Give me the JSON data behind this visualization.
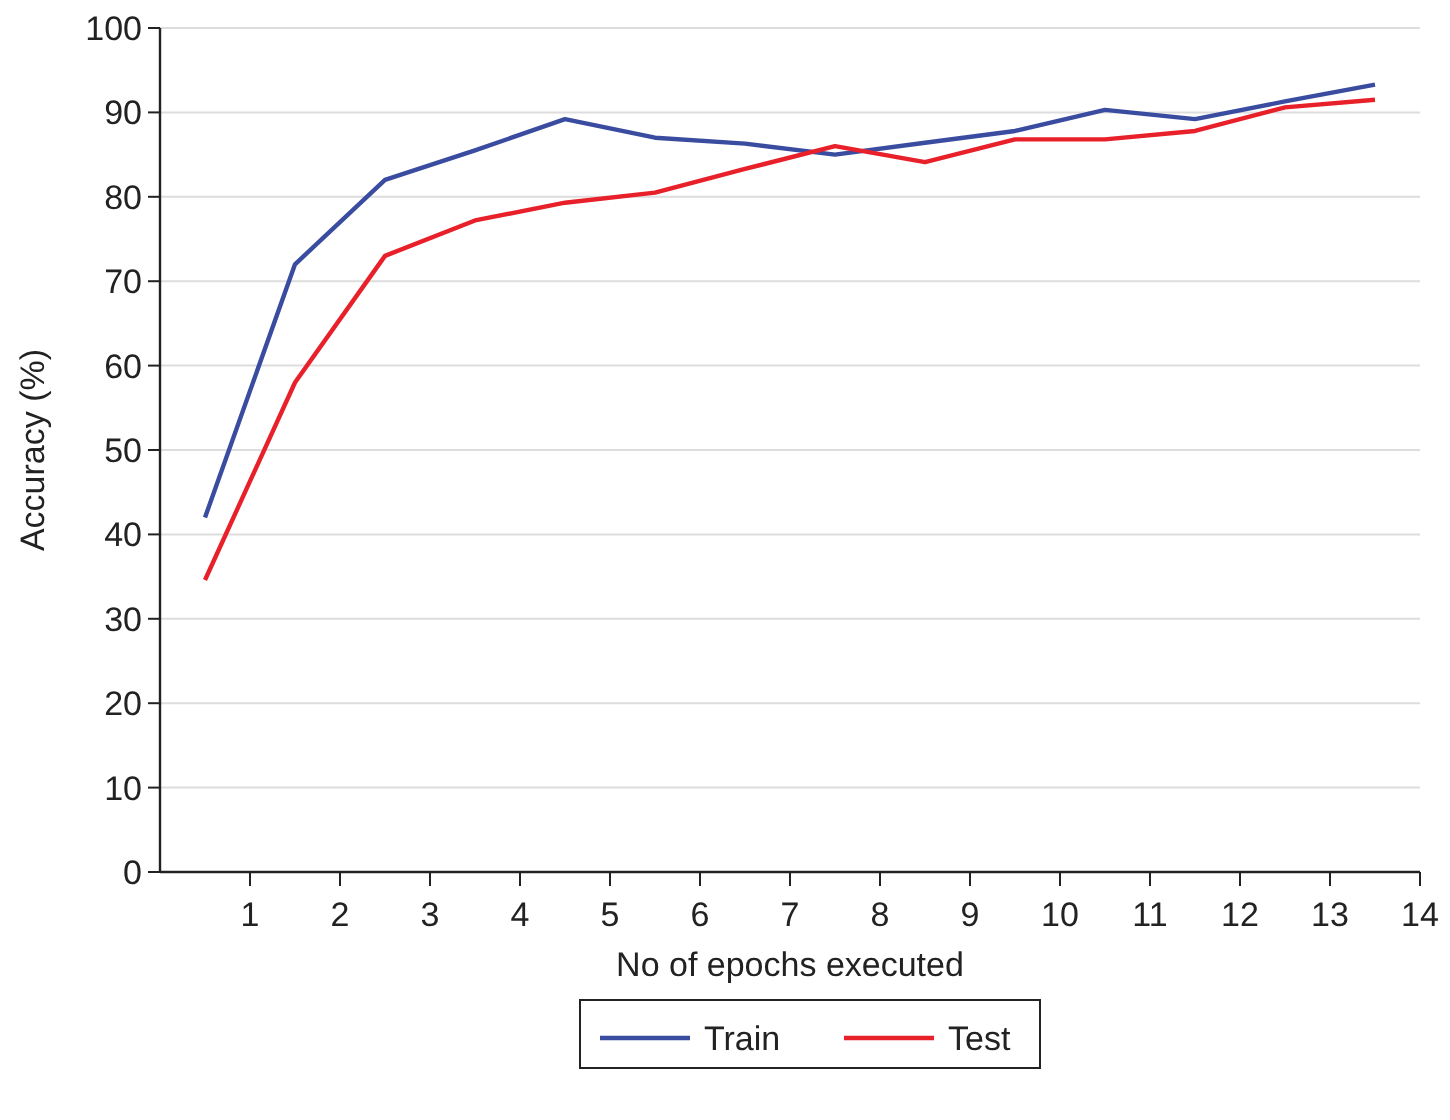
{
  "chart_data": {
    "type": "line",
    "xlabel": "No of epochs executed",
    "ylabel": "Accuracy (%)",
    "x": [
      0.5,
      1.5,
      2.5,
      3.5,
      4.5,
      5.5,
      6.5,
      7.5,
      8.5,
      9.5,
      10.5,
      11.5,
      12.5,
      13.5
    ],
    "series": [
      {
        "name": "Train",
        "color": "#3a4ca0",
        "values": [
          42,
          72,
          82,
          85.5,
          89.2,
          87,
          86.3,
          85,
          86.4,
          87.8,
          90.3,
          89.2,
          91.3,
          93.3
        ]
      },
      {
        "name": "Test",
        "color": "#e8202a",
        "values": [
          34.6,
          58,
          73,
          77.2,
          79.3,
          80.5,
          83.3,
          86,
          84.1,
          86.8,
          86.8,
          87.8,
          90.6,
          91.5
        ]
      }
    ],
    "xlim": [
      0,
      14
    ],
    "xticks": [
      1,
      2,
      3,
      4,
      5,
      6,
      7,
      8,
      9,
      10,
      11,
      12,
      13,
      14
    ],
    "ylim": [
      0,
      100
    ],
    "yticks": [
      0,
      10,
      20,
      30,
      40,
      50,
      60,
      70,
      80,
      90,
      100
    ],
    "grid": "y",
    "legend": "bottom",
    "marker": "none",
    "line_style": "solid"
  }
}
